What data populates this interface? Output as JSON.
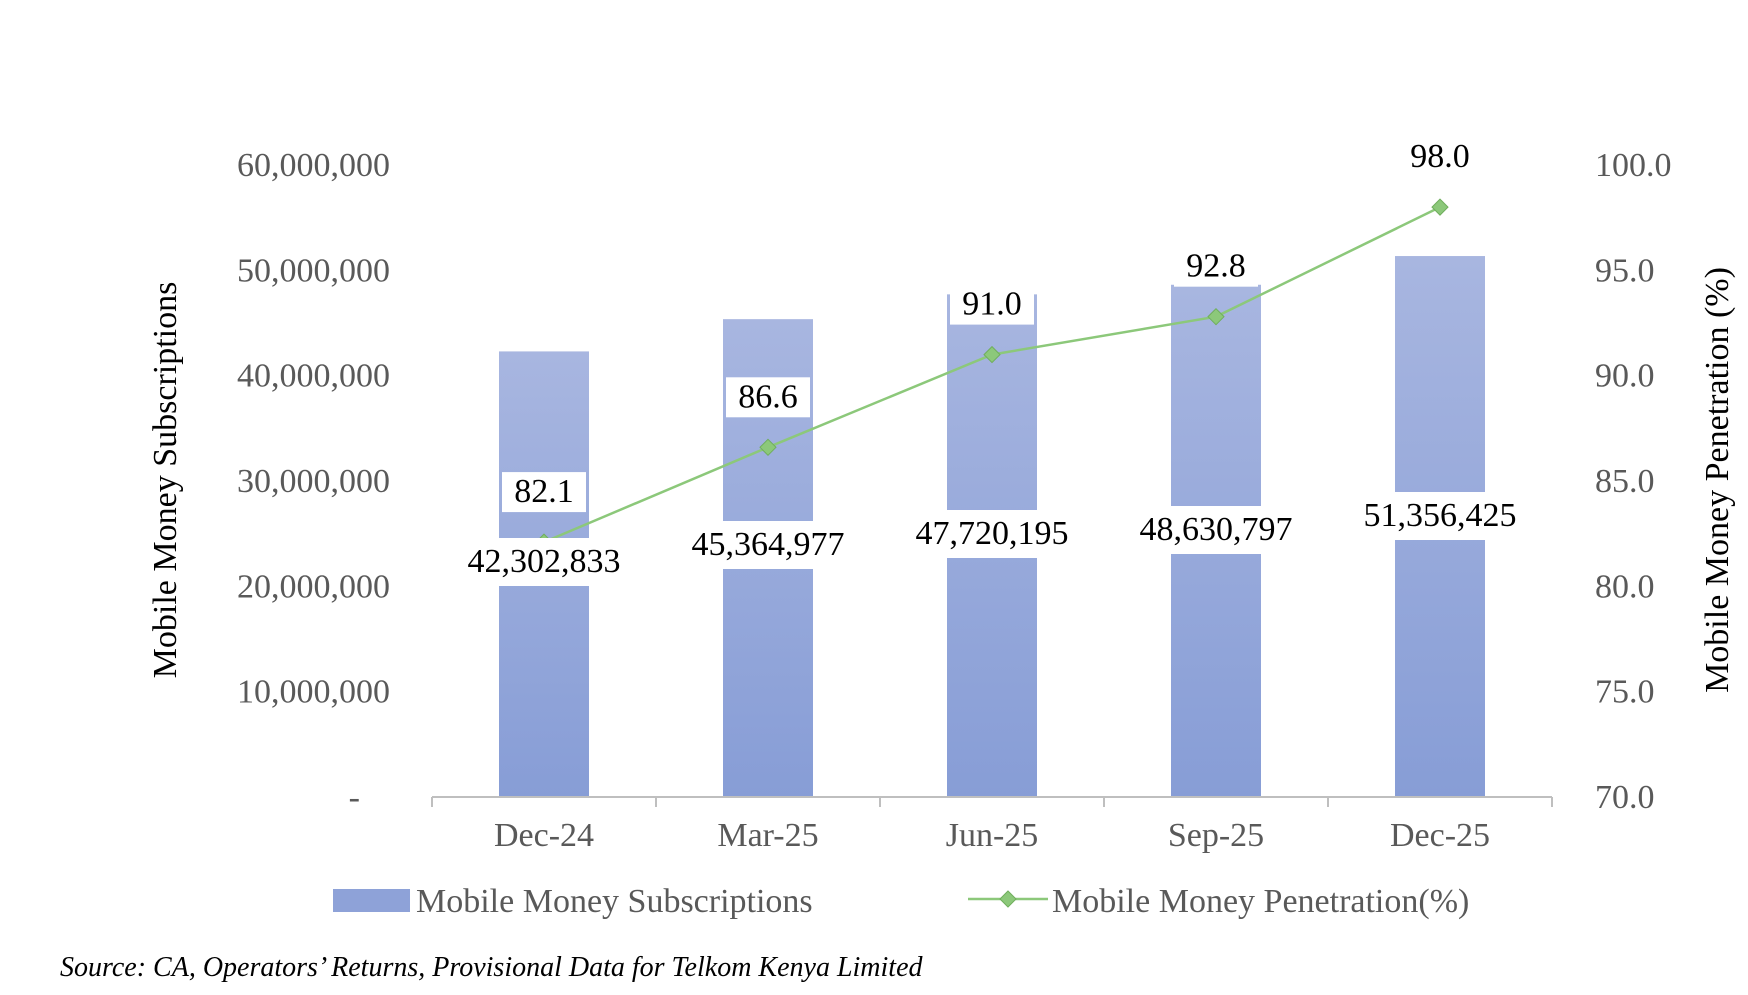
{
  "chart_data": {
    "type": "bar",
    "categories": [
      "Dec-24",
      "Mar-25",
      "Jun-25",
      "Sep-25",
      "Dec-25"
    ],
    "series": [
      {
        "name": "Mobile Money Subscriptions",
        "type": "bar",
        "axis": "left",
        "values": [
          42302833,
          45364977,
          47720195,
          48630797,
          51356425
        ],
        "labels": [
          "42,302,833",
          "45,364,977",
          "47,720,195",
          "48,630,797",
          "51,356,425"
        ],
        "color": "#8EA2D8"
      },
      {
        "name": "Mobile Money Penetration(%)",
        "type": "line",
        "axis": "right",
        "values": [
          82.1,
          86.6,
          91.0,
          92.8,
          98.0
        ],
        "labels": [
          "82.1",
          "86.6",
          "91.0",
          "92.8",
          "98.0"
        ],
        "color": "#8CC87A"
      }
    ],
    "ylabel": "Mobile Money Subscriptions",
    "y2label": "Mobile Money Penetration (%)",
    "ylim": [
      0,
      60000000
    ],
    "y2lim": [
      70,
      100
    ],
    "yticks": [
      "-",
      "10,000,000",
      "20,000,000",
      "30,000,000",
      "40,000,000",
      "50,000,000",
      "60,000,000"
    ],
    "y2ticks": [
      "70.0",
      "75.0",
      "80.0",
      "85.0",
      "90.0",
      "95.0",
      "100.0"
    ],
    "grid": false,
    "legend": "bottom"
  },
  "source_note": "Source: CA, Operators’ Returns, Provisional Data for Telkom Kenya Limited"
}
